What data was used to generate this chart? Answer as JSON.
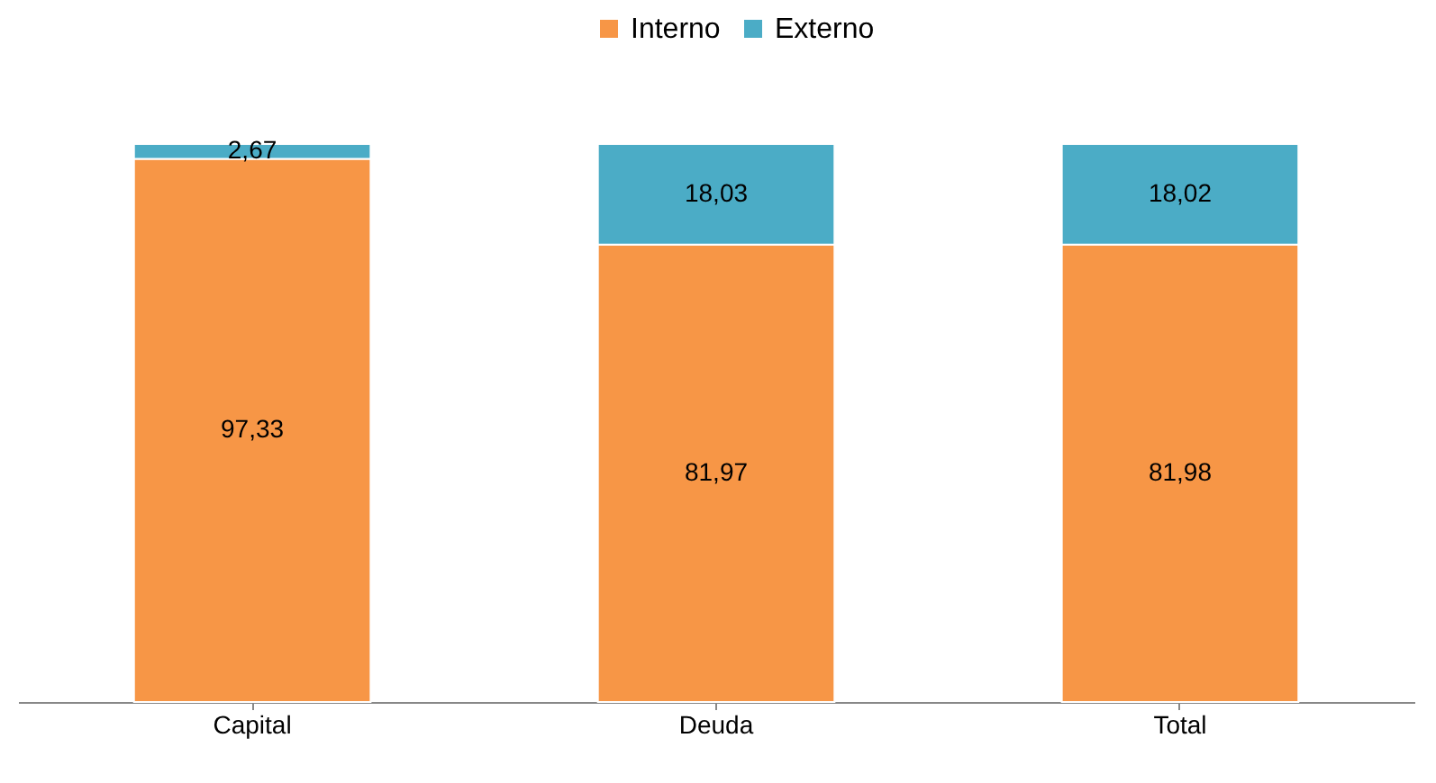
{
  "chart_data": {
    "type": "bar",
    "stacked": true,
    "legend": "top",
    "categories": [
      "Capital",
      "Deuda",
      "Total"
    ],
    "series": [
      {
        "name": "Interno",
        "color": "#f79646",
        "values": [
          97.33,
          81.97,
          81.98
        ],
        "value_labels": [
          "97,33",
          "81,97",
          "81,98"
        ]
      },
      {
        "name": "Externo",
        "color": "#4bacc6",
        "values": [
          2.67,
          18.03,
          18.02
        ],
        "value_labels": [
          "2,67",
          "18,03",
          "18,02"
        ]
      }
    ]
  }
}
